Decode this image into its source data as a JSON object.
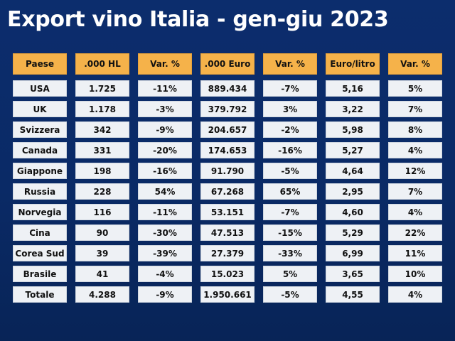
{
  "title": "Export vino Italia - gen-giu 2023",
  "table": {
    "headers": [
      ".000 HL",
      "Var. %",
      ".000 Euro",
      "Var. %",
      "Euro/litro",
      "Var. %"
    ],
    "first_header": "Paese",
    "rows": [
      {
        "paese": "USA",
        "hl": "1.725",
        "var1": "-11%",
        "euro": "889.434",
        "var2": "-7%",
        "eurolitro": "5,16",
        "var3": "5%"
      },
      {
        "paese": "UK",
        "hl": "1.178",
        "var1": "-3%",
        "euro": "379.792",
        "var2": "3%",
        "eurolitro": "3,22",
        "var3": "7%"
      },
      {
        "paese": "Svizzera",
        "hl": "342",
        "var1": "-9%",
        "euro": "204.657",
        "var2": "-2%",
        "eurolitro": "5,98",
        "var3": "8%"
      },
      {
        "paese": "Canada",
        "hl": "331",
        "var1": "-20%",
        "euro": "174.653",
        "var2": "-16%",
        "eurolitro": "5,27",
        "var3": "4%"
      },
      {
        "paese": "Giappone",
        "hl": "198",
        "var1": "-16%",
        "euro": "91.790",
        "var2": "-5%",
        "eurolitro": "4,64",
        "var3": "12%"
      },
      {
        "paese": "Russia",
        "hl": "228",
        "var1": "54%",
        "euro": "67.268",
        "var2": "65%",
        "eurolitro": "2,95",
        "var3": "7%"
      },
      {
        "paese": "Norvegia",
        "hl": "116",
        "var1": "-11%",
        "euro": "53.151",
        "var2": "-7%",
        "eurolitro": "4,60",
        "var3": "4%"
      },
      {
        "paese": "Cina",
        "hl": "90",
        "var1": "-30%",
        "euro": "47.513",
        "var2": "-15%",
        "eurolitro": "5,29",
        "var3": "22%"
      },
      {
        "paese": "Corea Sud",
        "hl": "39",
        "var1": "-39%",
        "euro": "27.379",
        "var2": "-33%",
        "eurolitro": "6,99",
        "var3": "11%"
      },
      {
        "paese": "Brasile",
        "hl": "41",
        "var1": "-4%",
        "euro": "15.023",
        "var2": "5%",
        "eurolitro": "3,65",
        "var3": "10%"
      },
      {
        "paese": "Totale",
        "hl": "4.288",
        "var1": "-9%",
        "euro": "1.950.661",
        "var2": "-5%",
        "eurolitro": "4,55",
        "var3": "4%"
      }
    ]
  },
  "colors": {
    "background": "#0b2a66",
    "header_fill": "#f5b24a",
    "cell_fill": "#eef1f5",
    "title_text": "#ffffff"
  }
}
